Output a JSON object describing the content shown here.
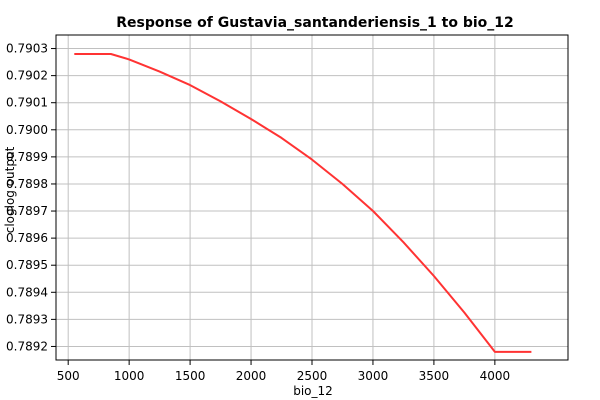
{
  "chart_data": {
    "type": "line",
    "title": "Response of Gustavia_santanderiensis_1 to bio_12",
    "xlabel": "bio_12",
    "ylabel": "cloglog output",
    "xlim": [
      400,
      4600
    ],
    "ylim": [
      0.78915,
      0.79035
    ],
    "x_ticks": [
      500,
      1000,
      1500,
      2000,
      2500,
      3000,
      3500,
      4000
    ],
    "y_ticks": [
      0.7892,
      0.7893,
      0.7894,
      0.7895,
      0.7896,
      0.7897,
      0.7898,
      0.7899,
      0.79,
      0.7901,
      0.7902,
      0.7903
    ],
    "y_tick_labels": [
      "0.7892",
      "0.7893",
      "0.7894",
      "0.7895",
      "0.7896",
      "0.7897",
      "0.7898",
      "0.7899",
      "0.7900",
      "0.7901",
      "0.7902",
      "0.7903"
    ],
    "x_tick_labels": [
      "500",
      "1000",
      "1500",
      "2000",
      "2500",
      "3000",
      "3500",
      "4000"
    ],
    "grid": true,
    "series": [
      {
        "color": "#ff3333",
        "x": [
          550,
          850,
          1000,
          1250,
          1500,
          1750,
          2000,
          2250,
          2500,
          2750,
          3000,
          3250,
          3500,
          3750,
          4000,
          4300
        ],
        "y": [
          0.79028,
          0.79028,
          0.79026,
          0.790215,
          0.790165,
          0.790105,
          0.79004,
          0.78997,
          0.78989,
          0.7898,
          0.7897,
          0.789585,
          0.78946,
          0.789325,
          0.78918,
          0.78918
        ]
      }
    ]
  }
}
